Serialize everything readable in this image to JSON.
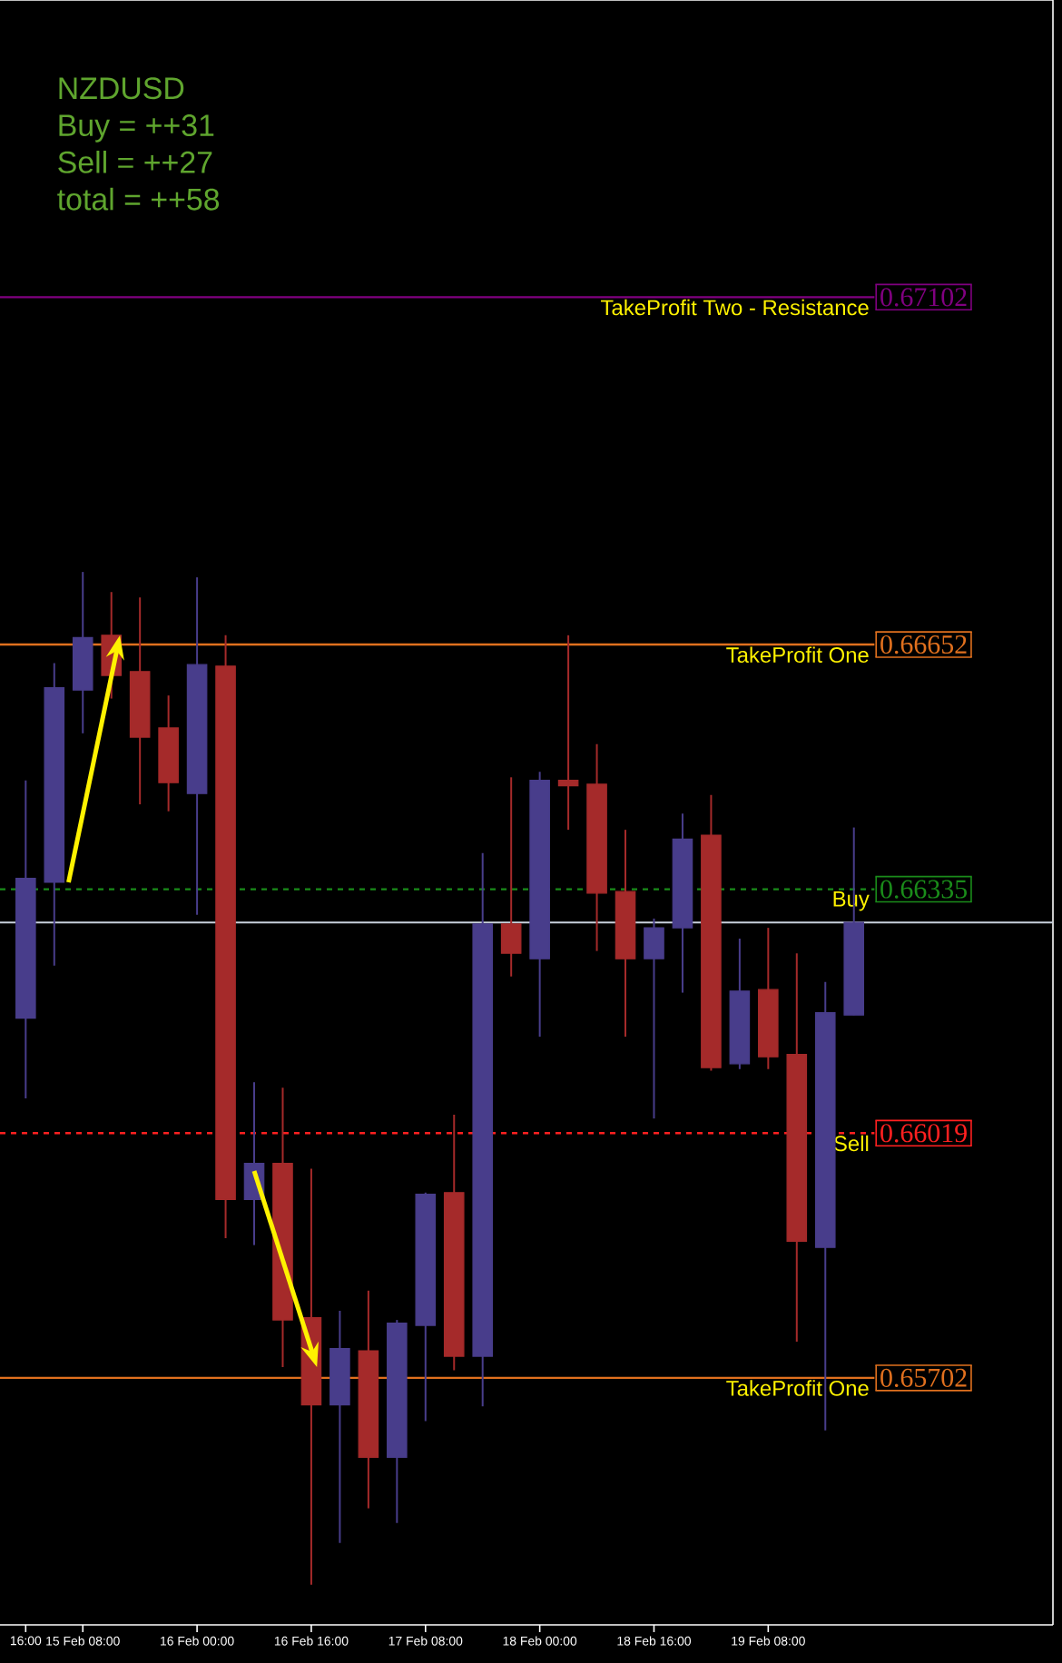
{
  "chart_data": {
    "type": "candlestick",
    "categories": [
      "16:00",
      null,
      "15 Feb 08:00",
      null,
      null,
      null,
      "16 Feb 00:00",
      null,
      null,
      null,
      "16 Feb 16:00",
      null,
      null,
      null,
      "17 Feb 08:00",
      null,
      null,
      null,
      "18 Feb 00:00",
      null,
      null,
      null,
      "18 Feb 16:00",
      null,
      null,
      null,
      "19 Feb 08:00",
      null,
      null,
      null
    ],
    "ohlc": [
      [
        0.66168,
        0.66476,
        0.66064,
        0.66349
      ],
      [
        0.66344,
        0.66628,
        0.66236,
        0.66596
      ],
      [
        0.66593,
        0.66746,
        0.66537,
        0.66661
      ],
      [
        0.66664,
        0.6672,
        0.66582,
        0.66612
      ],
      [
        0.66617,
        0.66713,
        0.66445,
        0.66532
      ],
      [
        0.66544,
        0.66586,
        0.66436,
        0.66473
      ],
      [
        0.66459,
        0.66739,
        0.66302,
        0.66626
      ],
      [
        0.66624,
        0.66664,
        0.65883,
        0.65933
      ],
      [
        0.65933,
        0.66085,
        0.65874,
        0.6598
      ],
      [
        0.6598,
        0.66078,
        0.65716,
        0.65777
      ],
      [
        0.6578,
        0.65973,
        0.65434,
        0.65667
      ],
      [
        0.65667,
        0.65789,
        0.65488,
        0.6574
      ],
      [
        0.65737,
        0.65815,
        0.65533,
        0.65599
      ],
      [
        0.65599,
        0.65777,
        0.65514,
        0.65773
      ],
      [
        0.6577,
        0.65942,
        0.65646,
        0.6594
      ],
      [
        0.65942,
        0.66043,
        0.65712,
        0.6573
      ],
      [
        0.6573,
        0.66382,
        0.65665,
        0.6629
      ],
      [
        0.6629,
        0.6648,
        0.66222,
        0.66252
      ],
      [
        0.66245,
        0.66487,
        0.66144,
        0.66476
      ],
      [
        0.66476,
        0.66664,
        0.66412,
        0.66469
      ],
      [
        0.66471,
        0.66523,
        0.66255,
        0.6633
      ],
      [
        0.66332,
        0.66412,
        0.66144,
        0.66245
      ],
      [
        0.66245,
        0.66297,
        0.66038,
        0.66285
      ],
      [
        0.66285,
        0.66433,
        0.66201,
        0.664
      ],
      [
        0.66405,
        0.66457,
        0.661,
        0.66104
      ],
      [
        0.66109,
        0.66271,
        0.66102,
        0.66203
      ],
      [
        0.66205,
        0.66285,
        0.66102,
        0.66118
      ],
      [
        0.66121,
        0.66252,
        0.65749,
        0.65879
      ],
      [
        0.65871,
        0.66215,
        0.65634,
        0.66175
      ],
      [
        0.66172,
        0.66415,
        0.66172,
        0.66292
      ]
    ],
    "colors": [
      "#483d8b",
      "#483d8b",
      "#483d8b",
      "#a52a2a",
      "#a52a2a",
      "#a52a2a",
      "#483d8b",
      "#a52a2a",
      "#483d8b",
      "#a52a2a",
      "#a52a2a",
      "#483d8b",
      "#a52a2a",
      "#483d8b",
      "#483d8b",
      "#a52a2a",
      "#483d8b",
      "#a52a2a",
      "#483d8b",
      "#a52a2a",
      "#a52a2a",
      "#a52a2a",
      "#483d8b",
      "#483d8b",
      "#a52a2a",
      "#483d8b",
      "#a52a2a",
      "#a52a2a",
      "#483d8b",
      "#483d8b"
    ],
    "ylim": [
      0.65382,
      0.67487
    ],
    "yticks": [
      0.65702,
      0.66019,
      0.66335,
      0.66652,
      0.67102
    ],
    "ref_lines": [
      {
        "axis": "y",
        "value": 0.67102,
        "label": "TakeProfit Two - Resistance",
        "color": "#800080",
        "line_style": "solid"
      },
      {
        "axis": "y",
        "value": 0.66652,
        "label": "TakeProfit One",
        "color": "#e0701e",
        "line_style": "solid"
      },
      {
        "axis": "y",
        "value": 0.66335,
        "label": "Buy",
        "color": "#1a8c1a",
        "line_style": "dashed"
      },
      {
        "axis": "y",
        "value": 0.66019,
        "label": "Sell",
        "color": "#ff2020",
        "line_style": "dashed"
      },
      {
        "axis": "y",
        "value": 0.65702,
        "label": "TakeProfit One",
        "color": "#e0701e",
        "line_style": "solid"
      },
      {
        "axis": "y",
        "value": 0.66292,
        "color": "#c8d0dc",
        "line_style": "solid"
      }
    ],
    "annotations": [
      "NZDUSD",
      "Buy = ++31",
      "Sell = ++27",
      "total = ++58"
    ]
  }
}
